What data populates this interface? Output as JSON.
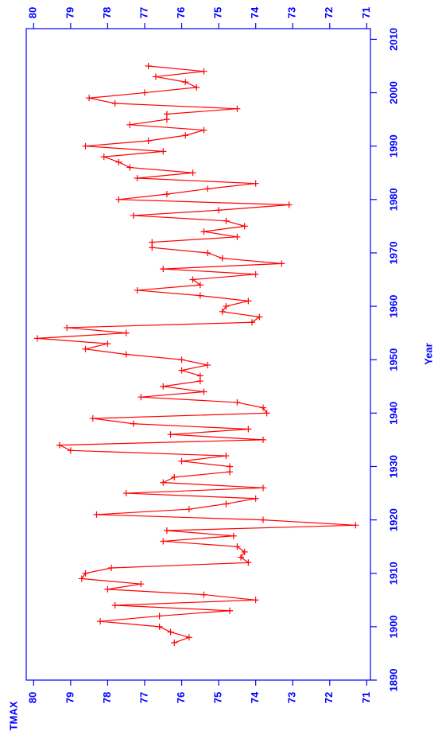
{
  "chart_data": {
    "type": "line",
    "xlabel": "Year",
    "ylabel": "TMAX",
    "x": [
      1897,
      1898,
      1899,
      1900,
      1901,
      1902,
      1903,
      1904,
      1905,
      1906,
      1907,
      1908,
      1909,
      1910,
      1911,
      1912,
      1913,
      1914,
      1915,
      1916,
      1917,
      1918,
      1919,
      1920,
      1921,
      1922,
      1923,
      1924,
      1925,
      1926,
      1927,
      1928,
      1929,
      1930,
      1931,
      1932,
      1933,
      1934,
      1935,
      1936,
      1937,
      1938,
      1939,
      1940,
      1941,
      1942,
      1943,
      1944,
      1945,
      1946,
      1947,
      1948,
      1949,
      1950,
      1951,
      1952,
      1953,
      1954,
      1955,
      1956,
      1957,
      1958,
      1959,
      1960,
      1961,
      1962,
      1963,
      1964,
      1965,
      1966,
      1967,
      1968,
      1969,
      1970,
      1971,
      1972,
      1973,
      1974,
      1975,
      1976,
      1977,
      1978,
      1979,
      1980,
      1981,
      1982,
      1983,
      1984,
      1985,
      1986,
      1987,
      1988,
      1989,
      1990,
      1991,
      1992,
      1993,
      1994,
      1995,
      1996,
      1997,
      1998,
      1999,
      2000,
      2001,
      2002,
      2003,
      2004,
      2005
    ],
    "series": [
      {
        "name": "TMAX",
        "color": "#ff0000",
        "values": [
          76.2,
          75.8,
          76.3,
          76.6,
          78.2,
          76.6,
          74.7,
          77.8,
          74.0,
          75.4,
          78.0,
          77.1,
          78.7,
          78.6,
          77.9,
          74.2,
          74.4,
          74.3,
          74.5,
          76.5,
          74.6,
          76.4,
          71.3,
          73.8,
          78.3,
          75.8,
          74.8,
          74.0,
          77.5,
          73.8,
          76.5,
          76.2,
          74.7,
          74.7,
          76.0,
          74.8,
          79.0,
          79.3,
          73.8,
          76.3,
          74.2,
          77.3,
          78.4,
          73.7,
          73.8,
          74.5,
          77.1,
          75.4,
          76.5,
          75.5,
          75.5,
          76.0,
          75.3,
          76.0,
          77.5,
          78.6,
          78.0,
          79.9,
          77.5,
          79.1,
          74.1,
          73.9,
          74.9,
          74.8,
          74.2,
          75.5,
          77.2,
          75.5,
          75.7,
          74.0,
          76.5,
          73.3,
          74.9,
          75.3,
          76.8,
          76.8,
          74.5,
          75.4,
          74.3,
          74.8,
          77.3,
          75.0,
          73.1,
          77.7,
          76.4,
          75.3,
          74.0,
          77.2,
          75.7,
          77.4,
          77.7,
          78.1,
          76.5,
          78.6,
          76.9,
          75.9,
          75.4,
          77.4,
          76.4,
          76.4,
          74.5,
          77.8,
          78.5,
          77.0,
          75.6,
          75.9,
          76.7,
          75.4,
          76.9
        ]
      }
    ],
    "xlim": [
      1890,
      2012
    ],
    "xticks": [
      1890,
      1900,
      1910,
      1920,
      1930,
      1940,
      1950,
      1960,
      1970,
      1980,
      1990,
      2000,
      2010
    ],
    "ylim": [
      70.9,
      80.2
    ],
    "yticks": [
      71,
      72,
      73,
      74,
      75,
      76,
      77,
      78,
      79,
      80
    ]
  }
}
